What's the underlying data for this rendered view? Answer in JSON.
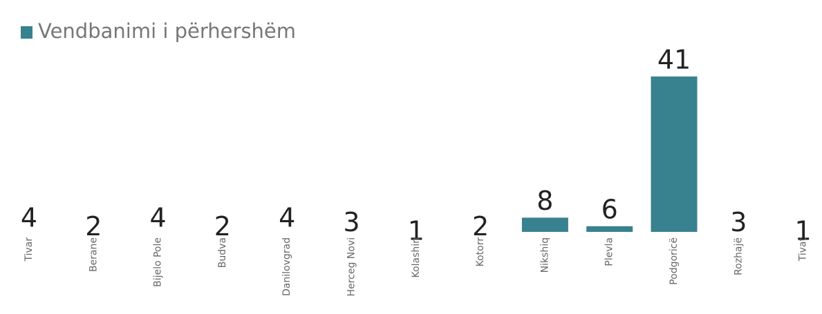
{
  "chart_data": {
    "type": "bar",
    "categories": [
      "Tivar",
      "Berane",
      "Bijelo Pole",
      "Budva",
      "Danilovgrad",
      "Herceg Novi",
      "Kolashin",
      "Kotorr",
      "Nikshiq",
      "Plevla",
      "Podgoricë",
      "Rozhajë",
      "Tivat"
    ],
    "series": [
      {
        "name": "Vendbanimi i përhershëm",
        "color": "#38818f",
        "values": [
          4,
          2,
          4,
          2,
          4,
          3,
          1,
          2,
          8,
          6,
          41,
          3,
          1
        ]
      }
    ]
  }
}
